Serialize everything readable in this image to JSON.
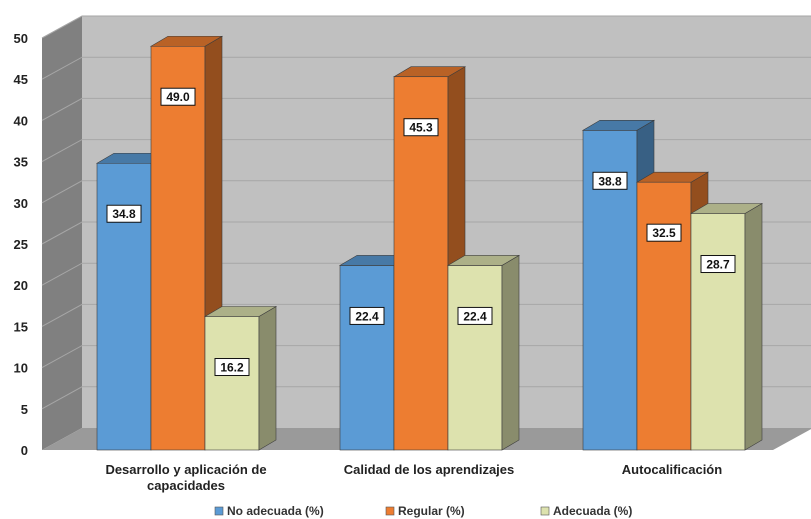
{
  "chart_data": {
    "type": "bar",
    "categories": [
      "Desarrollo y aplicación de capacidades",
      "Calidad de los aprendizajes",
      "Autocalificación"
    ],
    "category_lines": [
      [
        "Desarrollo y aplicación de",
        "capacidades"
      ],
      [
        "Calidad de los aprendizajes"
      ],
      [
        "Autocalificación"
      ]
    ],
    "series": [
      {
        "name": "No adecuada (%)",
        "values": [
          34.8,
          22.4,
          38.8
        ],
        "data_labels": [
          "34.8",
          "22.4",
          "38.8"
        ],
        "color": "#5b9bd5"
      },
      {
        "name": "Regular (%)",
        "values": [
          49.0,
          45.3,
          32.5
        ],
        "data_labels": [
          "49.0",
          "45.3",
          "32.5"
        ],
        "color": "#ed7d31"
      },
      {
        "name": "Adecuada (%)",
        "values": [
          16.2,
          22.4,
          28.7
        ],
        "data_labels": [
          "16.2",
          "22.4",
          "28.7"
        ],
        "color": "#dde2ae"
      }
    ],
    "title": "",
    "xlabel": "",
    "ylabel": "",
    "ylim": [
      0,
      50
    ],
    "yticks": [
      0,
      5,
      10,
      15,
      20,
      25,
      30,
      35,
      40,
      45,
      50
    ],
    "grid": true,
    "three_d": true,
    "legend_position": "bottom",
    "colors": {
      "wall": "#c0c0c0",
      "side_wall": "#808080",
      "floor": "#9a9a9a",
      "grid": "#a6a6a6"
    }
  }
}
